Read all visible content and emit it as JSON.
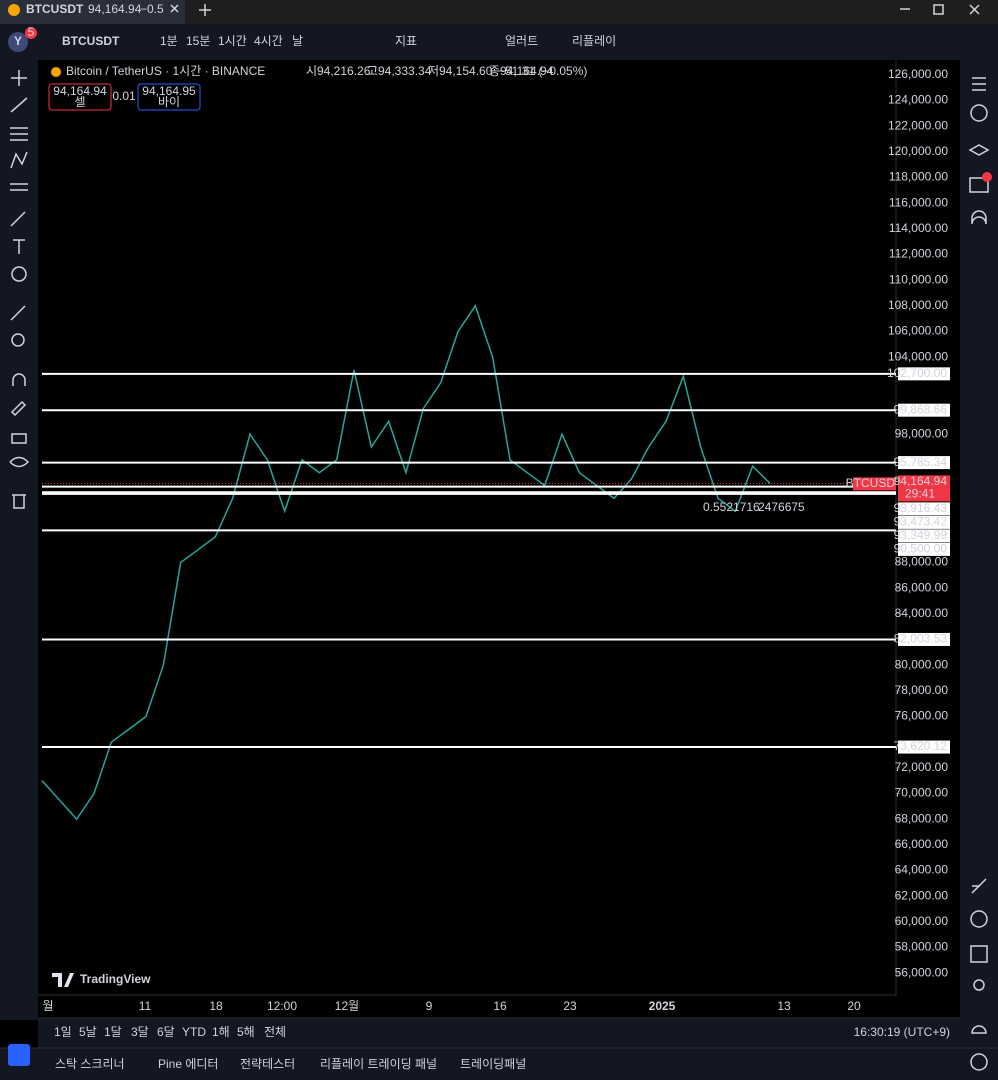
{
  "tab": {
    "symbol": "BTCUSDT",
    "price": "94,164.94",
    "change": "−0.5"
  },
  "toolbar": {
    "avatar": "Y",
    "badge": "5",
    "symbol": "BTCUSDT",
    "intervals": [
      "1분",
      "15분",
      "1시간",
      "4시간",
      "날"
    ],
    "indicators": "지표",
    "alert": "얼러트",
    "replay": "리플레이"
  },
  "legend": {
    "title": "Bitcoin / TetherUS · 1시간 · BINANCE",
    "open_label": "시",
    "open": "94,216.26",
    "high_label": "고",
    "high": "94,333.34",
    "low_label": "저",
    "low": "94,154.60",
    "close_label": "종",
    "close": "94,164.94",
    "change": "−51.31 (−0.05%)",
    "sell_price": "94,164.94",
    "sell": "셀",
    "spread": "0.01",
    "buy_price": "94,164.95",
    "buy": "바이"
  },
  "chart": {
    "ylim": [
      54300,
      127000
    ],
    "yticks": [
      {
        "value": 126000,
        "label": "126,000.00"
      },
      {
        "value": 124000,
        "label": "124,000.00"
      },
      {
        "value": 122000,
        "label": "122,000.00"
      },
      {
        "value": 120000,
        "label": "120,000.00"
      },
      {
        "value": 118000,
        "label": "118,000.00"
      },
      {
        "value": 116000,
        "label": "116,000.00"
      },
      {
        "value": 114000,
        "label": "114,000.00"
      },
      {
        "value": 112000,
        "label": "112,000.00"
      },
      {
        "value": 110000,
        "label": "110,000.00"
      },
      {
        "value": 108000,
        "label": "108,000.00"
      },
      {
        "value": 106000,
        "label": "106,000.00"
      },
      {
        "value": 104000,
        "label": "104,000.00"
      },
      {
        "value": 98000,
        "label": "98,000.00"
      },
      {
        "value": 88000,
        "label": "88,000.00"
      },
      {
        "value": 86000,
        "label": "86,000.00"
      },
      {
        "value": 84000,
        "label": "84,000.00"
      },
      {
        "value": 80000,
        "label": "80,000.00"
      },
      {
        "value": 78000,
        "label": "78,000.00"
      },
      {
        "value": 76000,
        "label": "76,000.00"
      },
      {
        "value": 72000,
        "label": "72,000.00"
      },
      {
        "value": 70000,
        "label": "70,000.00"
      },
      {
        "value": 68000,
        "label": "68,000.00"
      },
      {
        "value": 66000,
        "label": "66,000.00"
      },
      {
        "value": 64000,
        "label": "64,000.00"
      },
      {
        "value": 62000,
        "label": "62,000.00"
      },
      {
        "value": 60000,
        "label": "60,000.00"
      },
      {
        "value": 58000,
        "label": "58,000.00"
      },
      {
        "value": 56000,
        "label": "56,000.00"
      }
    ],
    "levels": [
      {
        "value": 102700,
        "label": "102,700.00"
      },
      {
        "value": 99868.66,
        "label": "99,868.66"
      },
      {
        "value": 95785.34,
        "label": "95,785.34"
      },
      {
        "value": 93916.43,
        "label": "93,916.43"
      },
      {
        "value": 93473.42,
        "label": "93,473.42"
      },
      {
        "value": 93349.99,
        "label": "93,349.99"
      },
      {
        "value": 90500,
        "label": "90,500.00"
      },
      {
        "value": 82003.53,
        "label": "82,003.53"
      },
      {
        "value": 73620.12,
        "label": "73,620.12"
      }
    ],
    "current": {
      "symbol": "BTCUSDT",
      "value": 94164.94,
      "label": "94,164.94",
      "countdown": "29:41"
    },
    "price": {
      "color": "#26a69a",
      "values": [
        71000,
        69500,
        68000,
        70000,
        74000,
        75000,
        76000,
        80000,
        88000,
        89000,
        90000,
        93000,
        98000,
        96000,
        92000,
        96000,
        95000,
        96000,
        103000,
        97000,
        99000,
        95000,
        100000,
        102000,
        106000,
        108000,
        104000,
        96000,
        95000,
        94000,
        98000,
        95000,
        94000,
        93000,
        94500,
        97000,
        99000,
        102500,
        97000,
        93000,
        92000,
        95500,
        94164.94
      ]
    },
    "annotation": [
      "0.5521716",
      "2476675"
    ],
    "time_labels": [
      "월",
      "11",
      "18",
      "12:00",
      "12월",
      "9",
      "16",
      "23",
      "2025",
      "13",
      "20"
    ],
    "watermark": "TradingView"
  },
  "bottom": {
    "ranges": [
      "1일",
      "5날",
      "1달",
      "3달",
      "6달",
      "YTD",
      "1해",
      "5해",
      "전체"
    ],
    "clock": "16:30:19 (UTC+9)",
    "tabs": [
      "스탁 스크리너",
      "Pine 에디터",
      "전략테스터",
      "리플레이 트레이딩 패널",
      "트레이딩패널"
    ]
  }
}
